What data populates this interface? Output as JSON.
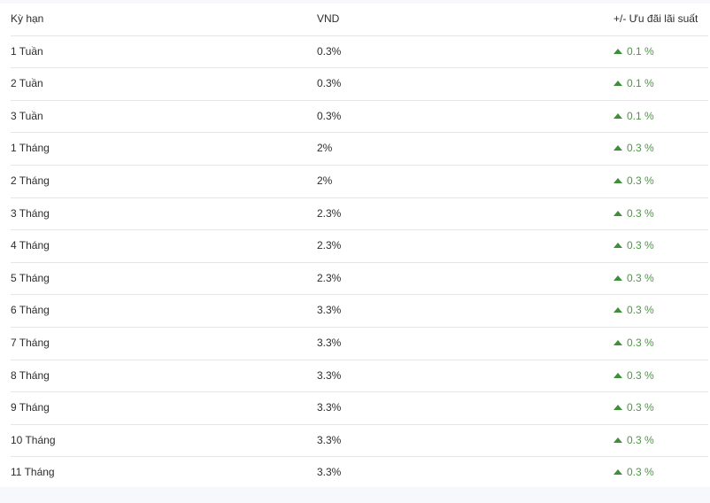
{
  "table": {
    "headers": [
      "Kỳ hạn",
      "VND",
      "+/- Ưu đãi lãi suất"
    ],
    "accent_color": "#4a9a3f",
    "rows": [
      {
        "term": "1 Tuần",
        "vnd": "0.3%",
        "bonus": "0.1 %"
      },
      {
        "term": "2 Tuần",
        "vnd": "0.3%",
        "bonus": "0.1 %"
      },
      {
        "term": "3 Tuần",
        "vnd": "0.3%",
        "bonus": "0.1 %"
      },
      {
        "term": "1 Tháng",
        "vnd": "2%",
        "bonus": "0.3 %"
      },
      {
        "term": "2 Tháng",
        "vnd": "2%",
        "bonus": "0.3 %"
      },
      {
        "term": "3 Tháng",
        "vnd": "2.3%",
        "bonus": "0.3 %"
      },
      {
        "term": "4 Tháng",
        "vnd": "2.3%",
        "bonus": "0.3 %"
      },
      {
        "term": "5 Tháng",
        "vnd": "2.3%",
        "bonus": "0.3 %"
      },
      {
        "term": "6 Tháng",
        "vnd": "3.3%",
        "bonus": "0.3 %"
      },
      {
        "term": "7 Tháng",
        "vnd": "3.3%",
        "bonus": "0.3 %"
      },
      {
        "term": "8 Tháng",
        "vnd": "3.3%",
        "bonus": "0.3 %"
      },
      {
        "term": "9 Tháng",
        "vnd": "3.3%",
        "bonus": "0.3 %"
      },
      {
        "term": "10 Tháng",
        "vnd": "3.3%",
        "bonus": "0.3 %"
      },
      {
        "term": "11 Tháng",
        "vnd": "3.3%",
        "bonus": "0.3 %"
      }
    ]
  }
}
